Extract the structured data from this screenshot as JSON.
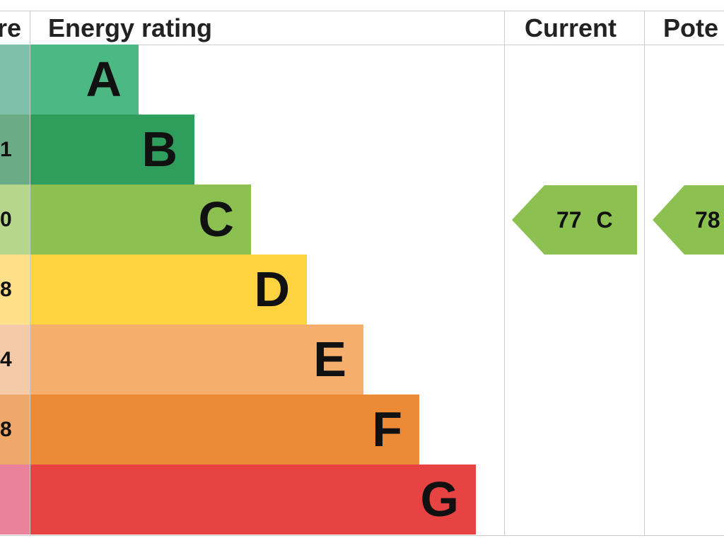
{
  "header": {
    "score": "re",
    "energy_rating": "Energy rating",
    "current": "Current",
    "potential": "Pote"
  },
  "bands": [
    {
      "score": null,
      "letter": "A"
    },
    {
      "score": "1",
      "letter": "B"
    },
    {
      "score": "0",
      "letter": "C"
    },
    {
      "score": "8",
      "letter": "D"
    },
    {
      "score": "4",
      "letter": "E"
    },
    {
      "score": "8",
      "letter": "F"
    },
    {
      "score": null,
      "letter": "G"
    }
  ],
  "current": {
    "label": "77 C"
  },
  "potential": {
    "label": "78"
  }
}
